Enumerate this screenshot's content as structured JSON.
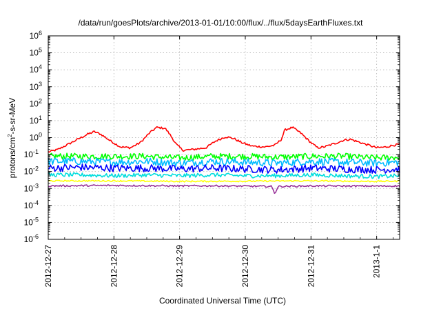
{
  "chart_data": {
    "type": "line",
    "title": "/data/run/goesPlots/archive/2013-01-01/10:00/flux/../flux/5daysEarthFluxes.txt",
    "xlabel": "Coordinated Universal Time (UTC)",
    "ylabel": {
      "base": "protons/cm",
      "sup": "2",
      "rest": "-s-sr-MeV"
    },
    "x_range_days": [
      0,
      5.35
    ],
    "x_ticks": [
      {
        "label": "2012-12-27",
        "day": 0
      },
      {
        "label": "2012-12-28",
        "day": 1
      },
      {
        "label": "2012-12-29",
        "day": 2
      },
      {
        "label": "2012-12-30",
        "day": 3
      },
      {
        "label": "2012-12-31",
        "day": 4
      },
      {
        "label": "2013-1-1",
        "day": 5
      }
    ],
    "y_scale": "log",
    "y_exp_range": [
      -6,
      6
    ],
    "y_ticks": [
      {
        "base": "10",
        "exp": "6",
        "value": 6
      },
      {
        "base": "10",
        "exp": "5",
        "value": 5
      },
      {
        "base": "10",
        "exp": "4",
        "value": 4
      },
      {
        "base": "10",
        "exp": "3",
        "value": 3
      },
      {
        "base": "10",
        "exp": "2",
        "value": 2
      },
      {
        "base": "10",
        "exp": "1",
        "value": 1
      },
      {
        "base": "10",
        "exp": "0",
        "value": 0
      },
      {
        "base": "10",
        "exp": "-1",
        "value": -1
      },
      {
        "base": "10",
        "exp": "-2",
        "value": -2
      },
      {
        "base": "10",
        "exp": "-3",
        "value": -3
      },
      {
        "base": "10",
        "exp": "-4",
        "value": -4
      },
      {
        "base": "10",
        "exp": "-5",
        "value": -5
      },
      {
        "base": "10",
        "exp": "-6",
        "value": -6
      }
    ],
    "grid": true,
    "series": [
      {
        "color": "#ff0000",
        "noise": 0.06,
        "points": [
          [
            0,
            -0.85
          ],
          [
            0.15,
            -0.7
          ],
          [
            0.35,
            -0.3
          ],
          [
            0.6,
            0.2
          ],
          [
            0.7,
            0.35
          ],
          [
            0.8,
            0.2
          ],
          [
            0.95,
            -0.2
          ],
          [
            1.1,
            -0.55
          ],
          [
            1.25,
            -0.6
          ],
          [
            1.4,
            -0.3
          ],
          [
            1.55,
            0.3
          ],
          [
            1.65,
            0.6
          ],
          [
            1.78,
            0.55
          ],
          [
            1.85,
            0.2
          ],
          [
            1.95,
            -0.4
          ],
          [
            2.05,
            -0.75
          ],
          [
            2.2,
            -0.7
          ],
          [
            2.4,
            -0.6
          ],
          [
            2.55,
            -0.2
          ],
          [
            2.7,
            0.05
          ],
          [
            2.82,
            -0.05
          ],
          [
            2.95,
            -0.3
          ],
          [
            3.1,
            -0.5
          ],
          [
            3.3,
            -0.55
          ],
          [
            3.45,
            -0.45
          ],
          [
            3.55,
            -0.1
          ],
          [
            3.6,
            0.45
          ],
          [
            3.72,
            0.6
          ],
          [
            3.85,
            0.25
          ],
          [
            4.0,
            -0.3
          ],
          [
            4.1,
            -0.6
          ],
          [
            4.2,
            -0.55
          ],
          [
            4.4,
            -0.3
          ],
          [
            4.5,
            -0.15
          ],
          [
            4.6,
            -0.1
          ],
          [
            4.8,
            -0.35
          ],
          [
            5.0,
            -0.6
          ],
          [
            5.15,
            -0.55
          ],
          [
            5.25,
            -0.45
          ],
          [
            5.35,
            -0.4
          ]
        ]
      },
      {
        "color": "#00ff00",
        "noise": 0.18,
        "points": [
          [
            0,
            -1.1
          ],
          [
            0.5,
            -1.1
          ],
          [
            1.0,
            -1.1
          ],
          [
            1.5,
            -1.1
          ],
          [
            2.0,
            -1.2
          ],
          [
            2.5,
            -1.1
          ],
          [
            3.0,
            -1.1
          ],
          [
            3.5,
            -1.15
          ],
          [
            4.0,
            -1.1
          ],
          [
            4.5,
            -1.1
          ],
          [
            5.0,
            -1.2
          ],
          [
            5.35,
            -1.15
          ]
        ]
      },
      {
        "color": "#00bbff",
        "noise": 0.22,
        "points": [
          [
            0,
            -1.4
          ],
          [
            0.5,
            -1.4
          ],
          [
            1.0,
            -1.45
          ],
          [
            1.5,
            -1.4
          ],
          [
            2.0,
            -1.5
          ],
          [
            2.5,
            -1.4
          ],
          [
            3.0,
            -1.45
          ],
          [
            3.5,
            -1.5
          ],
          [
            4.0,
            -1.4
          ],
          [
            4.5,
            -1.45
          ],
          [
            5.0,
            -1.5
          ],
          [
            5.35,
            -1.45
          ]
        ]
      },
      {
        "color": "#0000ff",
        "noise": 0.22,
        "points": [
          [
            0,
            -1.8
          ],
          [
            0.5,
            -1.75
          ],
          [
            1.0,
            -1.8
          ],
          [
            1.5,
            -1.8
          ],
          [
            2.0,
            -1.85
          ],
          [
            2.5,
            -1.8
          ],
          [
            3.0,
            -1.85
          ],
          [
            3.5,
            -1.9
          ],
          [
            4.0,
            -1.8
          ],
          [
            4.5,
            -1.85
          ],
          [
            5.0,
            -1.9
          ],
          [
            5.35,
            -1.85
          ]
        ]
      },
      {
        "color": "#00dddd",
        "noise": 0.12,
        "points": [
          [
            0,
            -2.2
          ],
          [
            0.5,
            -2.2
          ],
          [
            1.0,
            -2.25
          ],
          [
            1.5,
            -2.2
          ],
          [
            2.0,
            -2.25
          ],
          [
            2.5,
            -2.2
          ],
          [
            3.0,
            -2.25
          ],
          [
            3.5,
            -2.25
          ],
          [
            4.0,
            -2.2
          ],
          [
            4.5,
            -2.25
          ],
          [
            5.0,
            -2.3
          ],
          [
            5.35,
            -2.25
          ]
        ]
      },
      {
        "color": "#ffff00",
        "noise": 0.04,
        "points": [
          [
            0,
            -2.55
          ],
          [
            1.0,
            -2.55
          ],
          [
            2.0,
            -2.58
          ],
          [
            3.0,
            -2.57
          ],
          [
            4.0,
            -2.55
          ],
          [
            5.0,
            -2.58
          ],
          [
            5.35,
            -2.57
          ]
        ]
      },
      {
        "color": "#993399",
        "noise": 0.05,
        "points": [
          [
            0,
            -2.85
          ],
          [
            1.0,
            -2.82
          ],
          [
            2.0,
            -2.85
          ],
          [
            2.5,
            -2.84
          ],
          [
            3.4,
            -2.88
          ],
          [
            3.45,
            -3.3
          ],
          [
            3.5,
            -2.88
          ],
          [
            4.0,
            -2.85
          ],
          [
            5.0,
            -2.86
          ],
          [
            5.35,
            -2.85
          ]
        ]
      }
    ]
  }
}
